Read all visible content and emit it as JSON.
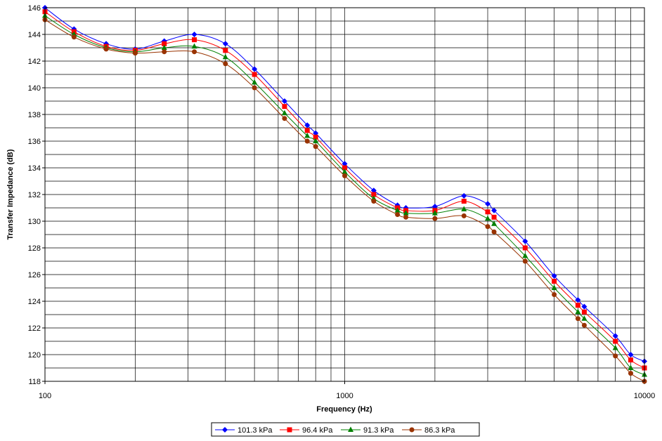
{
  "chart_data": {
    "type": "line",
    "title": "",
    "xlabel": "Frequency (Hz)",
    "ylabel": "Transfer Impedance (dB)",
    "xscale": "log",
    "xlim": [
      100,
      10000
    ],
    "ylim": [
      118,
      146
    ],
    "y_ticks": [
      118,
      120,
      122,
      124,
      126,
      128,
      130,
      132,
      134,
      136,
      138,
      140,
      142,
      144,
      146
    ],
    "x_tick_labels": [
      "100",
      "1000",
      "10000"
    ],
    "grid": true,
    "legend_position": "bottom",
    "x": [
      100,
      125,
      160,
      200,
      250,
      315,
      400,
      500,
      630,
      750,
      800,
      1000,
      1250,
      1500,
      1600,
      2000,
      2500,
      3000,
      3150,
      4000,
      5000,
      6000,
      6300,
      8000,
      9000,
      10000
    ],
    "series": [
      {
        "name": "101.3 kPa",
        "color": "#0000FF",
        "marker": "diamond",
        "values": [
          146.0,
          144.4,
          143.3,
          142.9,
          143.5,
          144.0,
          143.3,
          141.4,
          139.0,
          137.2,
          136.6,
          134.3,
          132.3,
          131.2,
          131.0,
          131.1,
          131.9,
          131.3,
          130.8,
          128.5,
          125.9,
          124.1,
          123.6,
          121.4,
          120.0,
          119.5
        ]
      },
      {
        "name": "96.4 kPa",
        "color": "#FF0000",
        "marker": "square",
        "values": [
          145.7,
          144.2,
          143.1,
          142.8,
          143.3,
          143.6,
          142.8,
          141.0,
          138.6,
          136.8,
          136.3,
          134.0,
          132.0,
          131.0,
          130.8,
          130.8,
          131.5,
          130.7,
          130.3,
          128.0,
          125.5,
          123.7,
          123.2,
          121.0,
          119.6,
          119.0
        ]
      },
      {
        "name": "91.3 kPa",
        "color": "#008000",
        "marker": "triangle",
        "values": [
          145.4,
          144.0,
          143.0,
          142.7,
          143.0,
          143.1,
          142.3,
          140.4,
          138.1,
          136.4,
          136.0,
          133.7,
          131.7,
          130.8,
          130.6,
          130.6,
          130.9,
          130.2,
          129.8,
          127.4,
          125.0,
          123.2,
          122.7,
          120.5,
          119.0,
          118.5
        ]
      },
      {
        "name": "86.3 kPa",
        "color": "#993300",
        "marker": "circle",
        "values": [
          145.1,
          143.8,
          142.9,
          142.6,
          142.7,
          142.7,
          141.8,
          140.0,
          137.7,
          136.0,
          135.6,
          133.4,
          131.5,
          130.5,
          130.3,
          130.2,
          130.4,
          129.6,
          129.2,
          127.0,
          124.5,
          122.7,
          122.2,
          119.9,
          118.6,
          118.0
        ]
      }
    ]
  }
}
